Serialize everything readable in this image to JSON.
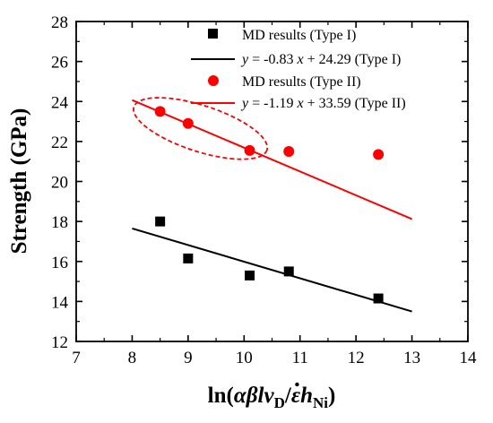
{
  "chart_data": {
    "type": "scatter",
    "xlabel": {
      "prefix": "ln(",
      "alpha": "α",
      "beta": "β",
      "l": "l",
      "v": "v",
      "sub_D": "D",
      "slash": "/",
      "epsilon": "ε",
      "h": "h",
      "sub_Ni": "Ni",
      "suffix": ")"
    },
    "ylabel": "Strength (GPa)",
    "xlim": [
      7,
      14
    ],
    "ylim": [
      12,
      28
    ],
    "xticks": [
      7,
      8,
      9,
      10,
      11,
      12,
      13,
      14
    ],
    "yticks": [
      12,
      14,
      16,
      18,
      20,
      22,
      24,
      26,
      28
    ],
    "grid": false,
    "legend_position": "top-right",
    "series": [
      {
        "name": "MD results (Type I)",
        "kind": "scatter",
        "marker": "square",
        "color": "#000000",
        "points": [
          [
            8.5,
            18.0
          ],
          [
            9.0,
            16.15
          ],
          [
            10.1,
            15.3
          ],
          [
            10.8,
            15.5
          ],
          [
            12.4,
            14.15
          ]
        ]
      },
      {
        "name": "MD results (Type II)",
        "kind": "scatter",
        "marker": "circle",
        "color": "#ff0000",
        "points": [
          [
            8.5,
            23.5
          ],
          [
            9.0,
            22.9
          ],
          [
            10.1,
            21.55
          ],
          [
            10.8,
            21.5
          ],
          [
            12.4,
            21.35
          ]
        ]
      },
      {
        "name": "y = -0.83 x + 24.29 (Type I)",
        "kind": "line",
        "color": "#000000",
        "slope": -0.83,
        "intercept": 24.29,
        "x_range": [
          8,
          13
        ],
        "legend_parts": {
          "y": "y",
          "eq": " = -0.83 ",
          "x": "x",
          "tail": " + 24.29 (Type I)"
        }
      },
      {
        "name": "y = -1.19 x + 33.59 (Type II)",
        "kind": "line",
        "color": "#ff0000",
        "slope": -1.19,
        "intercept": 33.59,
        "x_range": [
          8,
          13
        ],
        "legend_parts": {
          "y": "y",
          "eq": " = -1.19 ",
          "x": "x",
          "tail": " + 33.59 (Type II)"
        }
      }
    ],
    "annotations": [
      {
        "type": "dashed-ellipse",
        "color": "#ff0000",
        "center": [
          9.22,
          22.65
        ],
        "radius_x": 1.25,
        "radius_y": 1.15,
        "rotation_deg": 18
      }
    ]
  }
}
